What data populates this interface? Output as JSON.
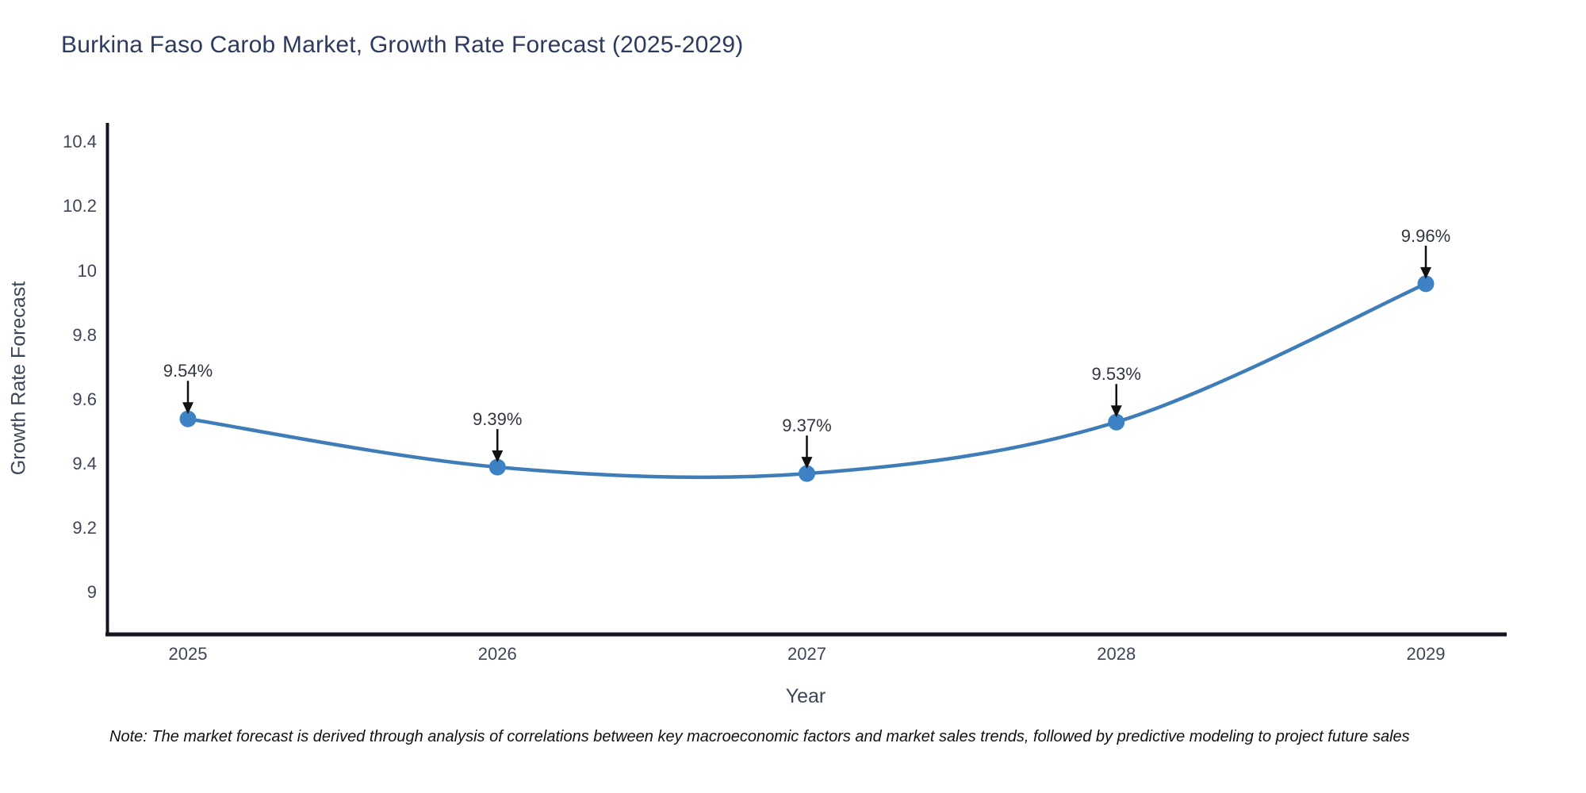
{
  "header": {
    "title": "Burkina Faso Carob Market, Growth Rate Forecast (2025-2029)"
  },
  "chart_data": {
    "type": "line",
    "title": "Burkina Faso Carob Market, Growth Rate Forecast (2025-2029)",
    "x": [
      2025,
      2026,
      2027,
      2028,
      2029
    ],
    "x_tick_labels": [
      "2025",
      "2026",
      "2027",
      "2028",
      "2029"
    ],
    "series": [
      {
        "name": "Growth Rate Forecast",
        "values": [
          9.54,
          9.39,
          9.37,
          9.53,
          9.96
        ]
      }
    ],
    "point_labels": [
      "9.54%",
      "9.39%",
      "9.37%",
      "9.53%",
      "9.96%"
    ],
    "xlabel": "Year",
    "ylabel": "Growth Rate Forecast",
    "ylim": [
      8.87,
      10.46
    ],
    "yticks": [
      9,
      9.2,
      9.4,
      9.6,
      9.8,
      10,
      10.2,
      10.4
    ],
    "ytick_labels": [
      "9",
      "9.2",
      "9.4",
      "9.6",
      "9.8",
      "10",
      "10.2",
      "10.4"
    ],
    "grid": false,
    "legend": "none",
    "curve": "spline",
    "line_color": "#3f7db8",
    "marker_color": "#3c82c4",
    "axis_color": "#14161f",
    "arrow_color": "#111111"
  },
  "note": {
    "text": "Note: The market forecast is derived through analysis of correlations between key macroeconomic factors and market sales trends, followed by predictive modeling to project future sales"
  }
}
